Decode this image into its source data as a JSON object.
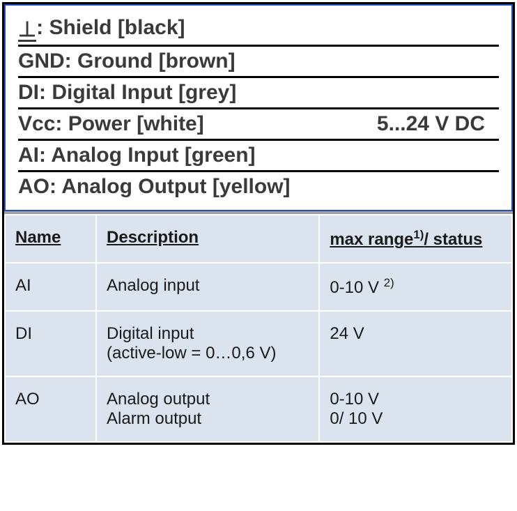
{
  "pinout": {
    "rows": [
      {
        "label": "⊥",
        "text": "Shield [black]",
        "extra": ""
      },
      {
        "label": "GND:",
        "text": "Ground [brown]",
        "extra": ""
      },
      {
        "label": "DI:",
        "text": "Digital Input [grey]",
        "extra": ""
      },
      {
        "label": "Vcc:",
        "text": "Power [white]",
        "extra": "5...24 V DC"
      },
      {
        "label": "AI:",
        "text": "Analog Input [green]",
        "extra": ""
      },
      {
        "label": "AO:",
        "text": "Analog Output [yellow]",
        "extra": ""
      }
    ],
    "border_color": "#2050c0",
    "rule_color": "#000000",
    "text_color": "#3a3a3a",
    "font_size_pt": 22
  },
  "signal_table": {
    "type": "table",
    "columns": [
      {
        "header": "Name",
        "width_pct": 18
      },
      {
        "header": "Description",
        "width_pct": 44
      },
      {
        "header_html": "max range<sup>1)</sup>/ status",
        "width_pct": 38
      }
    ],
    "rows": [
      {
        "name": "AI",
        "description": "Analog input",
        "range_html": "0-10 V <sup>2)</sup>"
      },
      {
        "name": "DI",
        "description": "Digital input\n(active-low = 0…0,6 V)",
        "range": "24 V"
      },
      {
        "name": "AO",
        "description": "Analog output\nAlarm output",
        "range": "0-10 V\n0/ 10 V"
      }
    ],
    "header_bg": "#dbe3ee",
    "cell_bg": "#dbe3ee",
    "border_color": "#ffffff",
    "text_color": "#1a1a1a",
    "font_size_pt": 18
  },
  "outer_border_color": "#000000",
  "outer_bg": "#a0a0a0"
}
